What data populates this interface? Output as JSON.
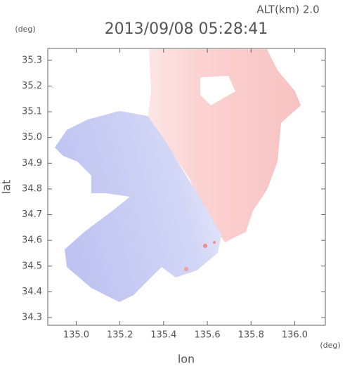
{
  "chart_data": {
    "type": "map",
    "title": "2013/09/08 05:28:41",
    "subtitle": "ALT(km) 2.0",
    "x_label": "lon",
    "y_label": "lat",
    "x_unit": "(deg)",
    "y_unit": "(deg)",
    "xlim": [
      134.87,
      136.14
    ],
    "ylim": [
      34.27,
      35.346
    ],
    "xticks": [
      {
        "value": 135,
        "label": "135.0"
      },
      135.2,
      135.4,
      135.6,
      135.8,
      {
        "value": 136,
        "label": "136.0"
      }
    ],
    "yticks": [
      34.3,
      34.4,
      34.5,
      34.6,
      34.7,
      34.8,
      34.9,
      {
        "value": 35,
        "label": "35.0"
      },
      35.1,
      35.2,
      35.3
    ]
  }
}
